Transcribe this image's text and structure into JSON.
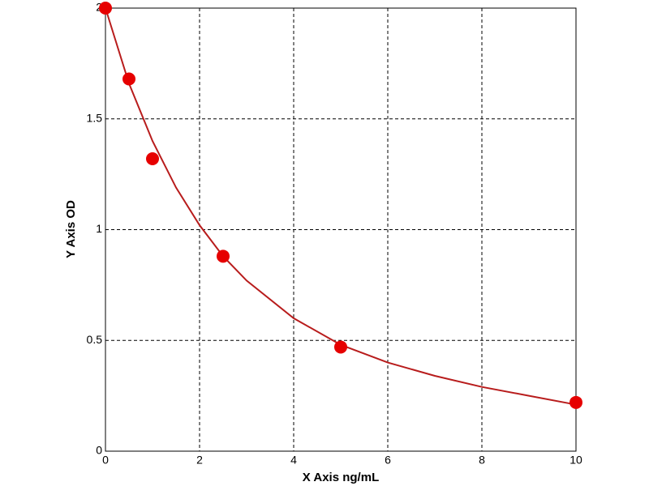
{
  "chart_data": {
    "type": "scatter",
    "x_label": "X Axis ng/mL",
    "y_label": "Y Axis OD",
    "x": [
      0,
      0.5,
      1,
      2.5,
      5,
      10
    ],
    "values": [
      2.0,
      1.68,
      1.32,
      0.88,
      0.47,
      0.22
    ],
    "color": "#e60000",
    "fit": {
      "x": [
        0,
        0.5,
        1,
        1.5,
        2,
        2.5,
        3,
        4,
        5,
        6,
        7,
        8,
        9,
        10
      ],
      "values": [
        2.0,
        1.66,
        1.4,
        1.19,
        1.02,
        0.88,
        0.77,
        0.6,
        0.48,
        0.4,
        0.34,
        0.29,
        0.25,
        0.21
      ],
      "color": "#b81c1c"
    },
    "xlim": [
      0,
      10
    ],
    "xticks": [
      0,
      2,
      4,
      6,
      8,
      10
    ],
    "ylim": [
      0,
      2
    ],
    "yticks": [
      0,
      0.5,
      1,
      1.5,
      2
    ],
    "grid": true
  }
}
